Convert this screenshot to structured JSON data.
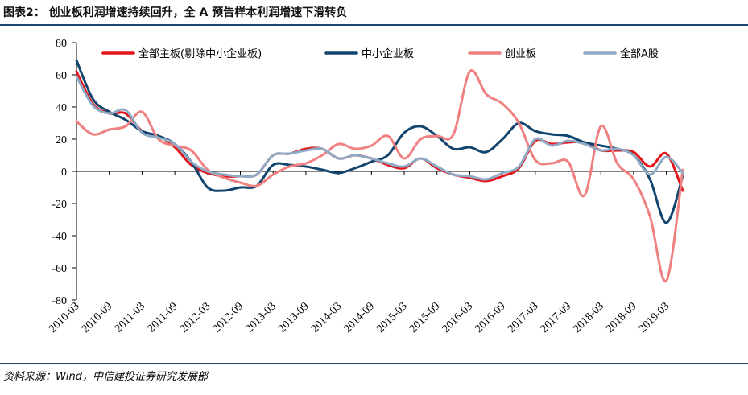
{
  "header": {
    "title": "图表2：  创业板利润增速持续回升，全 A 预告样本利润增速下滑转负"
  },
  "footer": {
    "source": "资料来源：Wind，中信建投证券研究发展部"
  },
  "colors": {
    "rule": "#1a4a73"
  },
  "chart_data": {
    "type": "line",
    "title": "",
    "xlabel": "",
    "ylabel": "",
    "ylim": [
      -80,
      80
    ],
    "yticks": [
      80,
      60,
      40,
      20,
      0,
      -20,
      -40,
      -60,
      -80
    ],
    "xticks": [
      "2010-03",
      "2010-09",
      "2011-03",
      "2011-09",
      "2012-03",
      "2012-09",
      "2013-03",
      "2013-09",
      "2014-03",
      "2014-09",
      "2015-03",
      "2015-09",
      "2016-03",
      "2016-09",
      "2017-03",
      "2017-09",
      "2018-03",
      "2018-09",
      "2019-03"
    ],
    "x": [
      "2010-03",
      "2010-06",
      "2010-09",
      "2010-12",
      "2011-03",
      "2011-06",
      "2011-09",
      "2011-12",
      "2012-03",
      "2012-06",
      "2012-09",
      "2012-12",
      "2013-03",
      "2013-06",
      "2013-09",
      "2013-12",
      "2014-03",
      "2014-06",
      "2014-09",
      "2014-12",
      "2015-03",
      "2015-06",
      "2015-09",
      "2015-12",
      "2016-03",
      "2016-06",
      "2016-09",
      "2016-12",
      "2017-03",
      "2017-06",
      "2017-09",
      "2017-12",
      "2018-03",
      "2018-06",
      "2018-09",
      "2018-12",
      "2019-03",
      "2019-06"
    ],
    "legend_position": "top",
    "grid": false,
    "series": [
      {
        "name": "全部主板(剔除中小企业板)",
        "color": "#e3141b",
        "width": 3,
        "values": [
          62,
          42,
          36,
          36,
          25,
          22,
          15,
          4,
          -1,
          -3,
          -3,
          -2,
          10,
          11,
          14,
          14,
          8,
          10,
          8,
          4,
          2,
          8,
          2,
          -2,
          -4,
          -6,
          -3,
          2,
          19,
          17,
          18,
          18,
          13,
          13,
          12,
          3,
          11,
          -12
        ]
      },
      {
        "name": "中小企业板",
        "color": "#12446e",
        "width": 3,
        "values": [
          69,
          45,
          37,
          32,
          25,
          22,
          17,
          6,
          -10,
          -12,
          -10,
          -9,
          4,
          4,
          3,
          1,
          -1,
          2,
          6,
          10,
          24,
          28,
          22,
          14,
          15,
          12,
          20,
          30,
          25,
          23,
          22,
          18,
          16,
          14,
          10,
          -5,
          -32,
          -3
        ]
      },
      {
        "name": "创业板",
        "color": "#f08080",
        "width": 3,
        "values": [
          31,
          23,
          26,
          28,
          37,
          20,
          16,
          13,
          1,
          -4,
          -7,
          -9,
          -2,
          3,
          5,
          10,
          17,
          14,
          16,
          22,
          8,
          20,
          22,
          23,
          62,
          48,
          42,
          30,
          7,
          5,
          6,
          -15,
          28,
          5,
          -5,
          -28,
          -68,
          1
        ]
      },
      {
        "name": "全部A股",
        "color": "#8faac4",
        "width": 3,
        "values": [
          59,
          41,
          36,
          38,
          24,
          21,
          17,
          6,
          0,
          -2,
          -3,
          -2,
          10,
          11,
          13,
          14,
          8,
          10,
          8,
          5,
          3,
          8,
          3,
          -2,
          -3,
          -5,
          -1,
          3,
          20,
          16,
          19,
          17,
          13,
          14,
          10,
          -2,
          9,
          -1
        ]
      }
    ]
  }
}
